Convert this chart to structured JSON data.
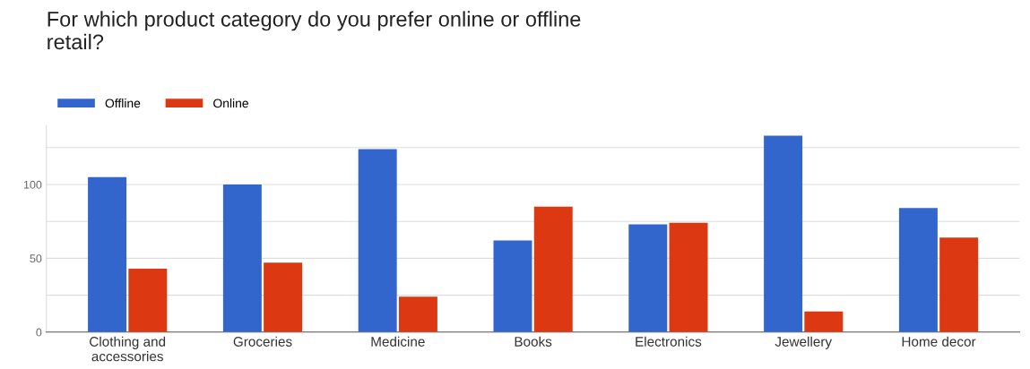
{
  "chart_data": {
    "type": "bar",
    "title": "For which product category do you prefer online or offline\nretail?",
    "categories": [
      "Clothing and\naccessories",
      "Groceries",
      "Medicine",
      "Books",
      "Electronics",
      "Jewellery",
      "Home decor"
    ],
    "series": [
      {
        "name": "Offline",
        "color": "#3366cc",
        "values": [
          105,
          100,
          124,
          62,
          73,
          133,
          84
        ]
      },
      {
        "name": "Online",
        "color": "#dc3912",
        "values": [
          43,
          47,
          24,
          85,
          74,
          14,
          64
        ]
      }
    ],
    "ylim": [
      0,
      140
    ],
    "yticks": [
      0,
      {
        "value": 25,
        "label": null
      },
      50,
      {
        "value": 75,
        "label": null
      },
      100,
      {
        "value": 125,
        "label": null
      }
    ],
    "grid": "y",
    "legend": "top left"
  }
}
